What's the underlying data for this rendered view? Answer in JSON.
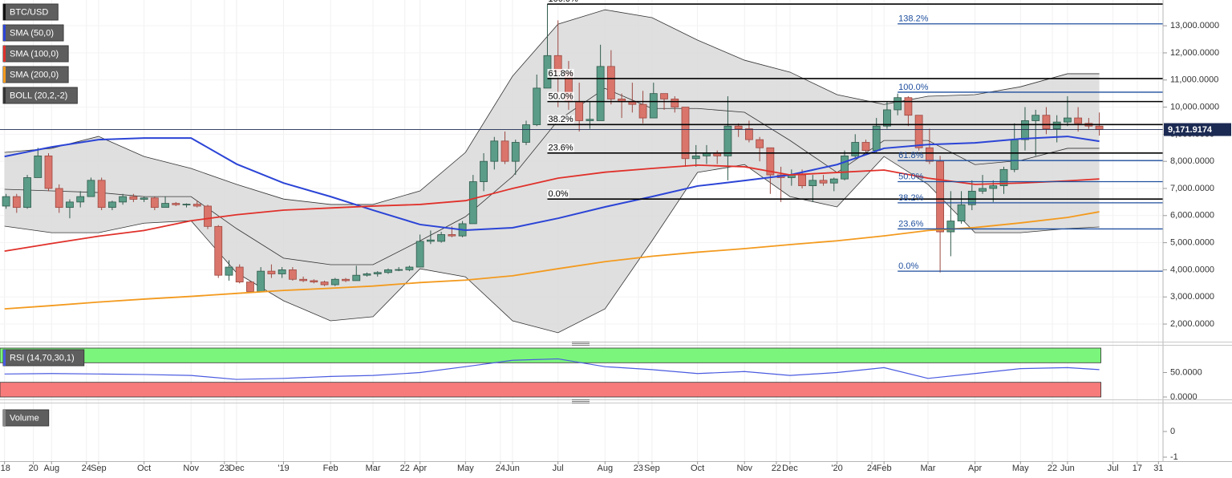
{
  "chart_data": {
    "type": "candlestick",
    "symbol": "BTC/USD",
    "x": [
      "2018-07-02",
      "2018-07-09",
      "2018-07-16",
      "2018-07-23",
      "2018-07-30",
      "2018-08-06",
      "2018-08-13",
      "2018-08-20",
      "2018-08-27",
      "2018-09-03",
      "2018-09-10",
      "2018-09-17",
      "2018-09-24",
      "2018-10-01",
      "2018-10-08",
      "2018-10-15",
      "2018-10-22",
      "2018-10-29",
      "2018-11-05",
      "2018-11-12",
      "2018-11-19",
      "2018-11-26",
      "2018-12-03",
      "2018-12-10",
      "2018-12-17",
      "2018-12-24",
      "2018-12-31",
      "2019-01-07",
      "2019-01-14",
      "2019-01-21",
      "2019-01-28",
      "2019-02-04",
      "2019-02-11",
      "2019-02-18",
      "2019-02-25",
      "2019-03-04",
      "2019-03-11",
      "2019-03-18",
      "2019-03-25",
      "2019-04-01",
      "2019-04-08",
      "2019-04-15",
      "2019-04-22",
      "2019-04-29",
      "2019-05-06",
      "2019-05-13",
      "2019-05-20",
      "2019-05-27",
      "2019-06-03",
      "2019-06-10",
      "2019-06-17",
      "2019-06-24",
      "2019-07-01",
      "2019-07-08",
      "2019-07-15",
      "2019-07-22",
      "2019-07-29",
      "2019-08-05",
      "2019-08-12",
      "2019-08-19",
      "2019-08-26",
      "2019-09-02",
      "2019-09-09",
      "2019-09-16",
      "2019-09-23",
      "2019-09-30",
      "2019-10-07",
      "2019-10-14",
      "2019-10-21",
      "2019-10-28",
      "2019-11-04",
      "2019-11-11",
      "2019-11-18",
      "2019-11-25",
      "2019-12-02",
      "2019-12-09",
      "2019-12-16",
      "2019-12-23",
      "2019-12-30",
      "2020-01-06",
      "2020-01-13",
      "2020-01-20",
      "2020-01-27",
      "2020-02-03",
      "2020-02-10",
      "2020-02-17",
      "2020-02-24",
      "2020-03-02",
      "2020-03-09",
      "2020-03-16",
      "2020-03-23",
      "2020-03-30",
      "2020-04-06",
      "2020-04-13",
      "2020-04-20",
      "2020-04-27",
      "2020-05-04",
      "2020-05-11",
      "2020-05-18",
      "2020-05-25",
      "2020-06-01",
      "2020-06-08",
      "2020-06-15",
      "2020-06-22"
    ],
    "open": [
      6350,
      6700,
      6300,
      7400,
      8200,
      7000,
      6300,
      6500,
      6700,
      7300,
      6300,
      6500,
      6700,
      6600,
      6650,
      6300,
      6450,
      6400,
      6420,
      6350,
      5600,
      3800,
      4100,
      3550,
      3200,
      3950,
      3850,
      4000,
      3650,
      3600,
      3550,
      3450,
      3650,
      3600,
      3800,
      3850,
      3900,
      4000,
      4000,
      4100,
      5050,
      5050,
      5300,
      5250,
      5700,
      7250,
      8000,
      8750,
      8000,
      8700,
      9350,
      10700,
      11900,
      11300,
      10200,
      9500,
      9500,
      11500,
      10300,
      10200,
      10100,
      9600,
      10500,
      10300,
      10000,
      8100,
      8200,
      8300,
      8200,
      9300,
      9200,
      8800,
      8500,
      7500,
      7400,
      7500,
      7100,
      7300,
      7200,
      7350,
      8200,
      8700,
      8400,
      9300,
      9900,
      10350,
      9700,
      8500,
      8000,
      5400,
      5800,
      6400,
      6900,
      7000,
      7100,
      7700,
      8800,
      9500,
      9700,
      9200,
      9450,
      9600,
      9400,
      9300
    ],
    "high": [
      6800,
      6800,
      7500,
      8500,
      8300,
      7150,
      6600,
      6900,
      7400,
      7400,
      6550,
      6800,
      6800,
      6700,
      6700,
      6700,
      6500,
      6450,
      6550,
      6400,
      5650,
      4350,
      4200,
      3600,
      4100,
      4200,
      4100,
      4100,
      3750,
      3650,
      3600,
      3700,
      3700,
      4150,
      3900,
      3950,
      4050,
      4100,
      4150,
      5300,
      5450,
      5400,
      5600,
      5800,
      7500,
      8300,
      8900,
      9100,
      8800,
      9500,
      11200,
      13800,
      13200,
      11700,
      10900,
      10200,
      12300,
      12100,
      10500,
      10900,
      10600,
      10900,
      10500,
      10400,
      10000,
      8600,
      8600,
      8400,
      10400,
      9400,
      9500,
      8900,
      8500,
      7800,
      7700,
      7700,
      7500,
      7500,
      7400,
      8400,
      9000,
      8800,
      9600,
      10200,
      10500,
      10400,
      9700,
      9200,
      8200,
      6900,
      6900,
      7300,
      7500,
      7300,
      7800,
      9400,
      10000,
      9900,
      10000,
      9700,
      10400,
      10000,
      9600,
      9800
    ],
    "low": [
      6250,
      6100,
      6250,
      7400,
      6900,
      6100,
      5900,
      6300,
      6700,
      6200,
      6200,
      6400,
      6500,
      6500,
      6200,
      6300,
      6350,
      6300,
      6300,
      5500,
      3700,
      3600,
      3500,
      3200,
      3200,
      3700,
      3700,
      3600,
      3550,
      3500,
      3400,
      3400,
      3550,
      3600,
      3750,
      3750,
      3850,
      3950,
      3950,
      4100,
      4950,
      5000,
      5200,
      5200,
      5700,
      6900,
      7700,
      7900,
      7500,
      8600,
      9300,
      10700,
      10000,
      9900,
      9100,
      9200,
      9500,
      10100,
      9600,
      9800,
      9400,
      9600,
      9900,
      9800,
      7800,
      7800,
      7900,
      7900,
      7300,
      8900,
      8700,
      8000,
      6800,
      6500,
      7100,
      7000,
      6500,
      7100,
      6900,
      7300,
      8100,
      8300,
      8300,
      9200,
      9700,
      9300,
      8400,
      7900,
      3900,
      4500,
      5700,
      6200,
      6800,
      6500,
      6800,
      7600,
      8400,
      8200,
      9000,
      8700,
      9300,
      9100,
      9200,
      8950
    ],
    "close": [
      6700,
      6300,
      7400,
      8200,
      7000,
      6300,
      6500,
      6700,
      7300,
      6300,
      6500,
      6700,
      6600,
      6650,
      6300,
      6450,
      6400,
      6420,
      6350,
      5600,
      3800,
      4100,
      3550,
      3200,
      3950,
      3850,
      4000,
      3650,
      3600,
      3550,
      3450,
      3650,
      3600,
      3800,
      3850,
      3900,
      4000,
      4010,
      4100,
      5050,
      5100,
      5300,
      5250,
      5700,
      7250,
      8000,
      8750,
      8000,
      8700,
      9350,
      10700,
      11900,
      11300,
      10200,
      9500,
      9550,
      11500,
      10300,
      10200,
      10100,
      9600,
      10500,
      10300,
      10000,
      8100,
      8200,
      8300,
      8200,
      9300,
      9200,
      8800,
      8500,
      7500,
      7400,
      7500,
      7100,
      7300,
      7200,
      7350,
      8200,
      8700,
      8400,
      9300,
      9900,
      10350,
      9700,
      8500,
      8000,
      5400,
      5800,
      6400,
      6900,
      7000,
      7100,
      7700,
      8800,
      9500,
      9700,
      9200,
      9450,
      9600,
      9400,
      9300,
      9170
    ],
    "up_color": "#5a9c87",
    "down_color": "#d9756b",
    "xlim": [
      "2018-06-28",
      "2020-08-03"
    ],
    "xticks": [
      {
        "value": "2018-07-01",
        "label": "'18"
      },
      {
        "value": "2018-07-20",
        "label": "20"
      },
      {
        "value": "2018-08-01",
        "label": "Aug"
      },
      {
        "value": "2018-08-24",
        "label": "24"
      },
      {
        "value": "2018-09-01",
        "label": "Sep"
      },
      {
        "value": "2018-10-01",
        "label": "Oct"
      },
      {
        "value": "2018-11-01",
        "label": "Nov"
      },
      {
        "value": "2018-11-23",
        "label": "23"
      },
      {
        "value": "2018-12-01",
        "label": "Dec"
      },
      {
        "value": "2019-01-01",
        "label": "'19"
      },
      {
        "value": "2019-02-01",
        "label": "Feb"
      },
      {
        "value": "2019-03-01",
        "label": "Mar"
      },
      {
        "value": "2019-03-22",
        "label": "22"
      },
      {
        "value": "2019-04-01",
        "label": "Apr"
      },
      {
        "value": "2019-05-01",
        "label": "May"
      },
      {
        "value": "2019-05-24",
        "label": "24"
      },
      {
        "value": "2019-06-01",
        "label": "Jun"
      },
      {
        "value": "2019-07-01",
        "label": "Jul"
      },
      {
        "value": "2019-08-01",
        "label": "Aug"
      },
      {
        "value": "2019-08-23",
        "label": "23"
      },
      {
        "value": "2019-09-01",
        "label": "Sep"
      },
      {
        "value": "2019-10-01",
        "label": "Oct"
      },
      {
        "value": "2019-11-01",
        "label": "Nov"
      },
      {
        "value": "2019-11-22",
        "label": "22"
      },
      {
        "value": "2019-12-01",
        "label": "Dec"
      },
      {
        "value": "2020-01-01",
        "label": "'20"
      },
      {
        "value": "2020-01-24",
        "label": "24"
      },
      {
        "value": "2020-02-01",
        "label": "Feb"
      },
      {
        "value": "2020-03-01",
        "label": "Mar"
      },
      {
        "value": "2020-04-01",
        "label": "Apr"
      },
      {
        "value": "2020-05-01",
        "label": "May"
      },
      {
        "value": "2020-05-22",
        "label": "22"
      },
      {
        "value": "2020-06-01",
        "label": "Jun"
      },
      {
        "value": "2020-07-01",
        "label": "Jul"
      },
      {
        "value": "2020-07-17",
        "label": "17"
      },
      {
        "value": "2020-07-31",
        "label": "31"
      }
    ],
    "ylim": [
      1380,
      13950
    ],
    "yticks": [
      {
        "value": 2000,
        "label": "2,000.0000"
      },
      {
        "value": 3000,
        "label": "3,000.0000"
      },
      {
        "value": 4000,
        "label": "4,000.0000"
      },
      {
        "value": 5000,
        "label": "5,000.0000"
      },
      {
        "value": 6000,
        "label": "6,000.0000"
      },
      {
        "value": 7000,
        "label": "7,000.0000"
      },
      {
        "value": 8000,
        "label": "8,000.0000"
      },
      {
        "value": 9000,
        "label": "9,000.0000"
      },
      {
        "value": 10000,
        "label": "10,000.0000"
      },
      {
        "value": 11000,
        "label": "11,000.0000"
      },
      {
        "value": 12000,
        "label": "12,000.0000"
      },
      {
        "value": 13000,
        "label": "13,000.0000"
      }
    ],
    "grid": true,
    "current_price": {
      "value": 9171.9174,
      "label": "9,171.9174",
      "color": "#1b2a52"
    },
    "indicators": {
      "x": [
        "2018-07-01",
        "2018-08-01",
        "2018-09-01",
        "2018-10-01",
        "2018-11-01",
        "2018-12-01",
        "2019-01-01",
        "2019-02-01",
        "2019-03-01",
        "2019-04-01",
        "2019-05-01",
        "2019-06-01",
        "2019-07-01",
        "2019-08-01",
        "2019-09-01",
        "2019-10-01",
        "2019-11-01",
        "2019-12-01",
        "2020-01-01",
        "2020-02-01",
        "2020-03-01",
        "2020-04-01",
        "2020-05-01",
        "2020-06-01",
        "2020-06-22"
      ],
      "series": [
        {
          "name": "SMA (50,0)",
          "color": "#2b44d6",
          "values": [
            8180,
            8530,
            8800,
            8860,
            8860,
            7900,
            7200,
            6700,
            6200,
            5670,
            5460,
            5550,
            5900,
            6320,
            6700,
            7090,
            7290,
            7500,
            7880,
            8480,
            8620,
            8680,
            8830,
            8920,
            8740
          ]
        },
        {
          "name": "SMA (100,0)",
          "color": "#e0302a",
          "values": [
            4690,
            4970,
            5240,
            5450,
            5810,
            6030,
            6200,
            6280,
            6350,
            6410,
            6550,
            7000,
            7380,
            7600,
            7740,
            7860,
            7800,
            7500,
            7590,
            7680,
            7380,
            7150,
            7200,
            7280,
            7350
          ]
        },
        {
          "name": "SMA (200,0)",
          "color": "#f39a1e",
          "values": [
            2560,
            2680,
            2810,
            2920,
            3020,
            3130,
            3240,
            3320,
            3400,
            3530,
            3620,
            3780,
            4040,
            4300,
            4500,
            4650,
            4780,
            4930,
            5070,
            5250,
            5450,
            5560,
            5730,
            5930,
            6140
          ]
        },
        {
          "name": "BOLL (20,2,-2)",
          "color": "#333333",
          "fill": "#d9d9d9",
          "upper": [
            8330,
            8480,
            8920,
            8180,
            7740,
            7150,
            6610,
            6410,
            6410,
            6910,
            8330,
            11140,
            13060,
            13590,
            13300,
            12470,
            11730,
            11290,
            10460,
            10100,
            10400,
            10460,
            10750,
            11230,
            11230
          ],
          "middle": [
            6970,
            6910,
            6850,
            6700,
            6700,
            5520,
            4430,
            4190,
            4190,
            5070,
            5960,
            7440,
            9510,
            10690,
            9950,
            9950,
            9810,
            8770,
            7590,
            8770,
            8770,
            7880,
            8030,
            8480,
            8480
          ],
          "lower": [
            5610,
            5370,
            5370,
            5720,
            5810,
            3890,
            2860,
            2120,
            2270,
            4040,
            3740,
            2120,
            1680,
            2560,
            5070,
            7590,
            7880,
            6700,
            6320,
            8180,
            7150,
            5370,
            5370,
            5520,
            5580
          ]
        }
      ]
    },
    "fibonacci": [
      {
        "color": "#000000",
        "start": "2019-06-24",
        "levels": [
          {
            "label": "100.0%",
            "value": 13800
          },
          {
            "label": "61.8%",
            "value": 11053
          },
          {
            "label": "50.0%",
            "value": 10205
          },
          {
            "label": "38.2%",
            "value": 9356
          },
          {
            "label": "23.6%",
            "value": 8307
          },
          {
            "label": "0.0%",
            "value": 6610
          }
        ]
      },
      {
        "color": "#1f4f9e",
        "start": "2020-02-10",
        "levels": [
          {
            "label": "138.2%",
            "value": 13071
          },
          {
            "label": "100.0%",
            "value": 10550
          },
          {
            "label": "61.8%",
            "value": 8029
          },
          {
            "label": "50.0%",
            "value": 7250
          },
          {
            "label": "38.2%",
            "value": 6471
          },
          {
            "label": "23.6%",
            "value": 5508
          },
          {
            "label": "0.0%",
            "value": 3950
          }
        ]
      }
    ],
    "rsi": {
      "name": "RSI (14,70,30,1)",
      "color": "#4a5be0",
      "values": [
        47,
        48,
        47,
        46,
        44,
        36,
        38,
        42,
        44,
        50,
        62,
        75,
        78,
        62,
        56,
        48,
        52,
        44,
        50,
        60,
        38,
        48,
        58,
        60,
        56
      ],
      "ylim": [
        0,
        100
      ],
      "yticks": [
        {
          "value": 50,
          "label": "50.0000"
        },
        {
          "value": 0,
          "label": "0.0000"
        }
      ],
      "overbought": 70,
      "oversold": 30,
      "overbought_color": "#7cf57c",
      "oversold_color": "#f77b7b"
    },
    "volume": {
      "name": "Volume",
      "ylim": [
        -1,
        1
      ],
      "yticks": [
        0,
        -1
      ]
    }
  }
}
